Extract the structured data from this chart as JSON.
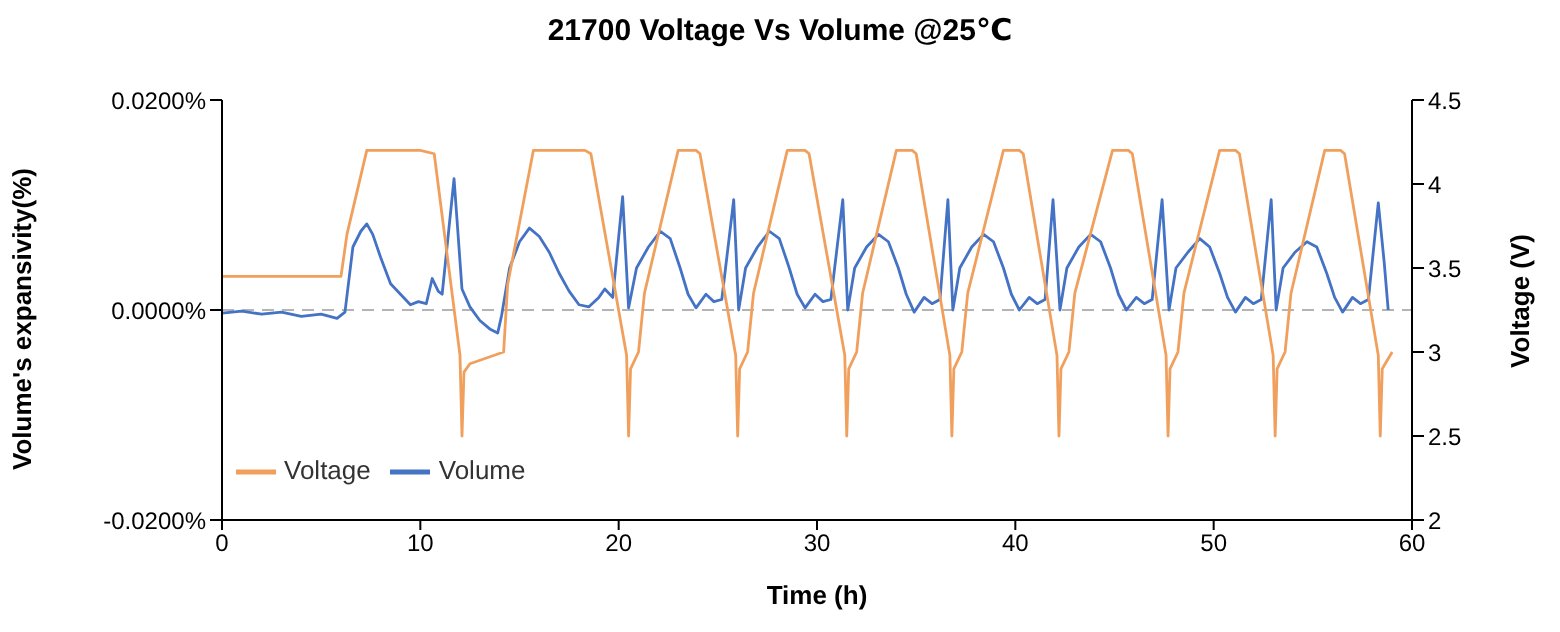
{
  "chart_data": {
    "type": "line",
    "title": "21700 Voltage Vs Volume @25℃",
    "xlabel": "Time (h)",
    "ylabel": "Volume's expansivity(%)",
    "y2label": "Voltage (V)",
    "xlim": [
      0,
      60
    ],
    "xticks": [
      0,
      10,
      20,
      30,
      40,
      50,
      60
    ],
    "ylim": [
      -0.02,
      0.02
    ],
    "yticks": [
      {
        "value": -0.02,
        "label": "-0.0200%"
      },
      {
        "value": 0,
        "label": "0.0000%"
      },
      {
        "value": 0.02,
        "label": "0.0200%"
      }
    ],
    "y2lim": [
      2,
      4.5
    ],
    "y2ticks": [
      2,
      2.5,
      3,
      3.5,
      4,
      4.5
    ],
    "grid": false,
    "legend": "bottom left",
    "line_style": "solid",
    "marker": "none",
    "ref_lines": [
      {
        "axis": "y",
        "value": 0,
        "color": "#b4b4b4",
        "line_style": "dashed"
      }
    ],
    "series": [
      {
        "name": "Volume",
        "color": "#4472c4",
        "x": [
          0,
          1,
          2,
          3,
          4,
          5,
          5.8,
          6.2,
          6.6,
          7.0,
          7.3,
          7.6,
          8.0,
          8.5,
          9.0,
          9.5,
          9.9,
          10.3,
          10.6,
          10.9,
          11.1,
          11.7,
          12.1,
          12.5,
          13.0,
          13.5,
          13.9,
          14.1,
          14.5,
          15.0,
          15.5,
          16.0,
          16.5,
          17.0,
          17.5,
          18.0,
          18.5,
          19.0,
          19.3,
          19.7,
          20.2,
          20.5,
          20.9,
          21.5,
          22.1,
          22.6,
          23.1,
          23.5,
          23.9,
          24.4,
          24.8,
          25.2,
          25.8,
          26.05,
          26.4,
          27.0,
          27.6,
          28.1,
          28.6,
          29.0,
          29.4,
          29.9,
          30.3,
          30.7,
          31.3,
          31.55,
          31.9,
          32.5,
          33.1,
          33.6,
          34.1,
          34.5,
          34.9,
          35.4,
          35.8,
          36.2,
          36.6,
          36.85,
          37.2,
          37.8,
          38.4,
          38.9,
          39.4,
          39.8,
          40.2,
          40.7,
          41.1,
          41.5,
          41.9,
          42.25,
          42.6,
          43.2,
          43.8,
          44.3,
          44.8,
          45.2,
          45.6,
          46.1,
          46.5,
          46.9,
          47.4,
          47.75,
          48.1,
          48.7,
          49.3,
          49.8,
          50.3,
          50.7,
          51.1,
          51.6,
          52.0,
          52.4,
          52.9,
          53.15,
          53.5,
          54.1,
          54.7,
          55.2,
          55.7,
          56.1,
          56.5,
          57.0,
          57.4,
          57.8,
          58.3,
          58.6,
          58.8
        ],
        "values": [
          -0.0003,
          -0.0001,
          -0.0004,
          -0.0002,
          -0.0006,
          -0.0004,
          -0.0008,
          -0.0002,
          0.006,
          0.0075,
          0.0082,
          0.0072,
          0.005,
          0.0025,
          0.0015,
          0.0005,
          0.0008,
          0.0006,
          0.003,
          0.0018,
          0.0015,
          0.0125,
          0.002,
          0.0003,
          -0.001,
          -0.0018,
          -0.0022,
          -0.0005,
          0.004,
          0.0065,
          0.0078,
          0.007,
          0.0055,
          0.0035,
          0.0018,
          0.0005,
          0.0003,
          0.0012,
          0.002,
          0.0012,
          0.0108,
          0.0002,
          0.004,
          0.006,
          0.0075,
          0.0068,
          0.004,
          0.0015,
          0.0002,
          0.0015,
          0.0008,
          0.001,
          0.0105,
          0.0,
          0.004,
          0.006,
          0.0075,
          0.0068,
          0.004,
          0.0015,
          0.0002,
          0.0015,
          0.0008,
          0.001,
          0.0105,
          0.0,
          0.004,
          0.006,
          0.0072,
          0.0065,
          0.004,
          0.0015,
          -0.0002,
          0.0012,
          0.0006,
          0.001,
          0.0105,
          0.0,
          0.004,
          0.006,
          0.0072,
          0.0065,
          0.004,
          0.0015,
          0.0,
          0.0012,
          0.0006,
          0.001,
          0.0105,
          0.0,
          0.004,
          0.006,
          0.0072,
          0.0065,
          0.004,
          0.0015,
          0.0,
          0.0012,
          0.0006,
          0.001,
          0.0105,
          0.0,
          0.004,
          0.0055,
          0.0068,
          0.006,
          0.0035,
          0.0012,
          -0.0002,
          0.0012,
          0.0006,
          0.001,
          0.0105,
          0.0,
          0.004,
          0.0055,
          0.0065,
          0.006,
          0.0035,
          0.0012,
          -0.0002,
          0.0012,
          0.0006,
          0.001,
          0.0102,
          0.0045,
          0.0
        ]
      },
      {
        "name": "Voltage",
        "color": "#f0a05c",
        "axis": "y2",
        "x": [
          0,
          6.0,
          6.3,
          7.3,
          10.0,
          10.7,
          12.0,
          12.1,
          12.2,
          12.5,
          14.2,
          14.4,
          15.7,
          18.3,
          18.6,
          20.4,
          20.5,
          20.6,
          21.0,
          21.3,
          23.0,
          23.9,
          24.1,
          25.9,
          26.0,
          26.1,
          26.5,
          26.8,
          28.5,
          29.4,
          29.6,
          31.4,
          31.5,
          31.6,
          32.0,
          32.3,
          34.0,
          34.8,
          35.0,
          36.7,
          36.8,
          36.9,
          37.3,
          37.6,
          39.4,
          40.2,
          40.4,
          42.1,
          42.2,
          42.3,
          42.7,
          43.0,
          44.9,
          45.7,
          45.9,
          47.6,
          47.7,
          47.8,
          48.2,
          48.5,
          50.3,
          51.1,
          51.3,
          53.0,
          53.1,
          53.2,
          53.6,
          53.9,
          55.6,
          56.4,
          56.6,
          58.3,
          58.4,
          58.5,
          59.0
        ],
        "values": [
          3.45,
          3.45,
          3.7,
          4.2,
          4.2,
          4.18,
          2.98,
          2.5,
          2.88,
          2.93,
          3.0,
          3.4,
          4.2,
          4.2,
          4.18,
          2.98,
          2.5,
          2.9,
          3.0,
          3.35,
          4.2,
          4.2,
          4.18,
          2.98,
          2.5,
          2.9,
          3.0,
          3.35,
          4.2,
          4.2,
          4.18,
          2.98,
          2.5,
          2.9,
          3.0,
          3.35,
          4.2,
          4.2,
          4.18,
          2.98,
          2.5,
          2.9,
          3.0,
          3.35,
          4.2,
          4.2,
          4.18,
          2.98,
          2.5,
          2.9,
          3.0,
          3.35,
          4.2,
          4.2,
          4.18,
          2.98,
          2.5,
          2.9,
          3.0,
          3.35,
          4.2,
          4.2,
          4.18,
          2.98,
          2.5,
          2.9,
          3.0,
          3.35,
          4.2,
          4.2,
          4.18,
          2.98,
          2.5,
          2.9,
          3.0
        ]
      }
    ]
  }
}
